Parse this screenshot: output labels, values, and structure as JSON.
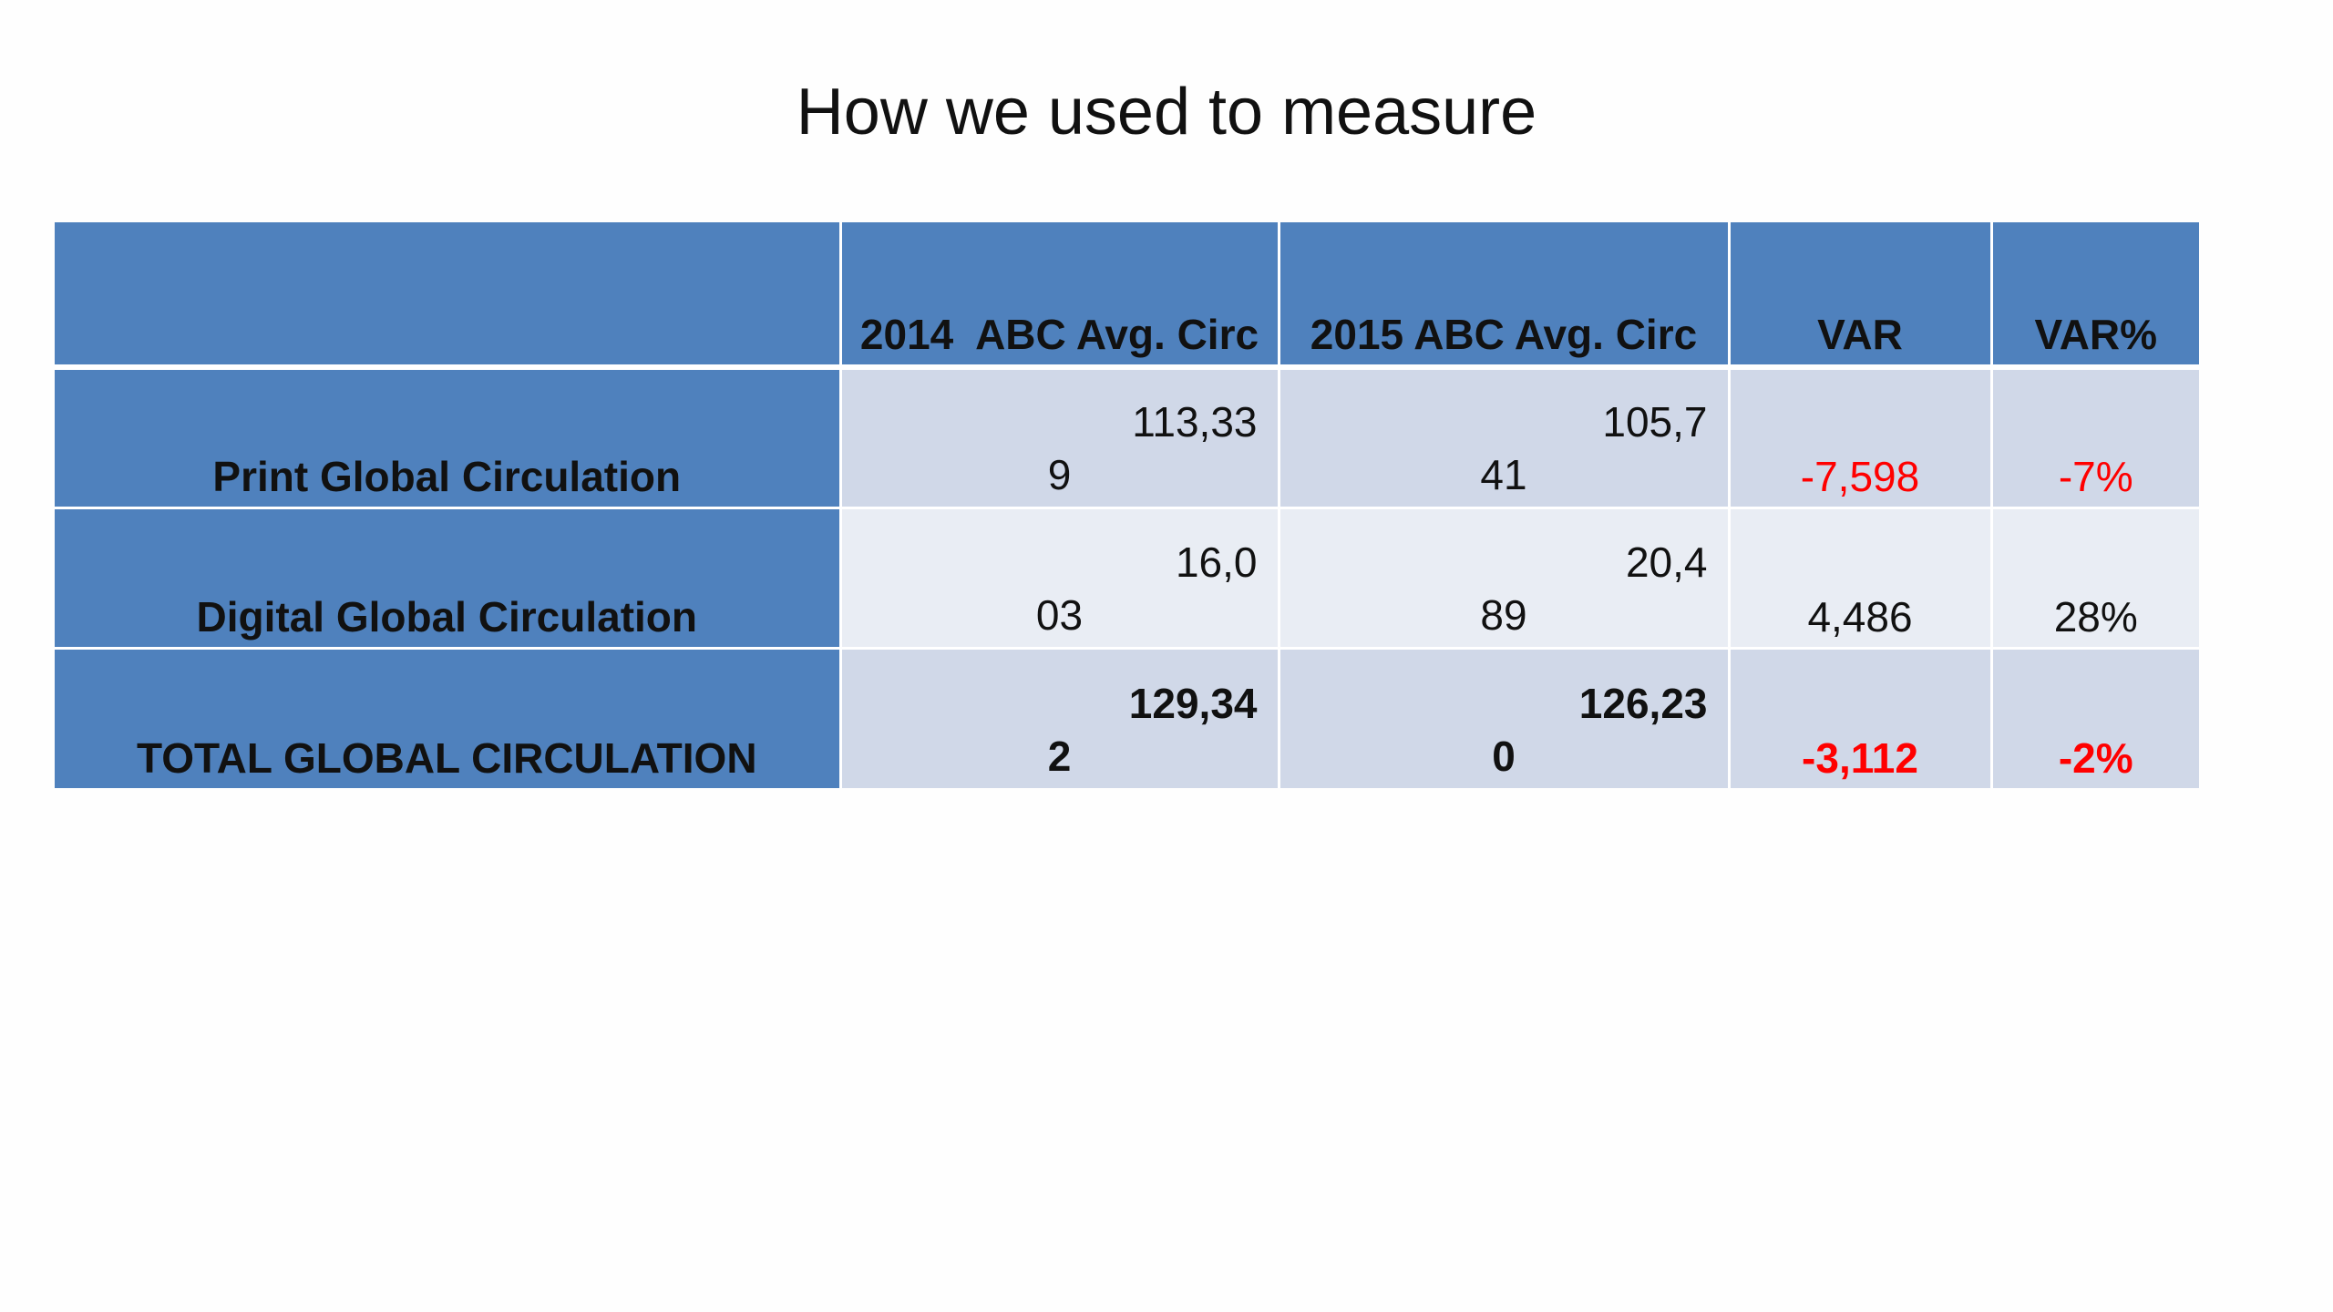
{
  "title": "How we used to measure",
  "table": {
    "headers": [
      "",
      "2014  ABC Avg. Circ",
      "2015 ABC Avg. Circ",
      "VAR",
      "VAR%"
    ],
    "rows": [
      {
        "label": "Print Global Circulation",
        "y2014_top": "113,33",
        "y2014_bottom": "9",
        "y2015_top": "105,7",
        "y2015_bottom": "41",
        "var": "-7,598",
        "var_pct": "-7%"
      },
      {
        "label": "Digital Global Circulation",
        "y2014_top": "16,0",
        "y2014_bottom": "03",
        "y2015_top": "20,4",
        "y2015_bottom": "89",
        "var": "4,486",
        "var_pct": "28%"
      },
      {
        "label": "TOTAL GLOBAL CIRCULATION",
        "y2014_top": "129,34",
        "y2014_bottom": "2",
        "y2015_top": "126,23",
        "y2015_bottom": "0",
        "var": "-3,112",
        "var_pct": "-2%"
      }
    ]
  },
  "colors": {
    "header_fill": "#4f81bd",
    "row_fill_dark": "#d0d8e8",
    "row_fill_light": "#e9edf4",
    "negative_text": "#ff0000"
  }
}
